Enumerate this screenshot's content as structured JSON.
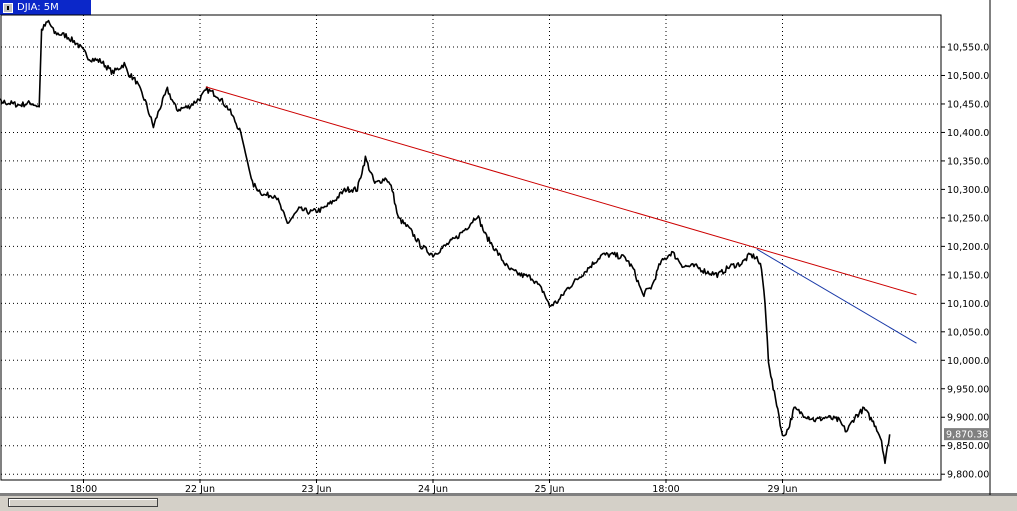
{
  "window": {
    "title": "DJIA: 5M"
  },
  "chart_data": {
    "type": "line",
    "symbol": "DJIA",
    "interval": "5M",
    "ylim": [
      9800,
      10600
    ],
    "y_ticks": [
      10550,
      10500,
      10450,
      10400,
      10350,
      10300,
      10250,
      10200,
      10150,
      10100,
      10050,
      10000,
      9950,
      9900,
      9850,
      9800
    ],
    "y_tick_labels": [
      "10,550.0",
      "10,500.0",
      "10,450.0",
      "10,400.0",
      "10,350.0",
      "10,300.0",
      "10,250.0",
      "10,200.0",
      "10,150.0",
      "10,100.0",
      "10,050.0",
      "10,000.0",
      "9,950.00",
      "9,900.00",
      "9,850.00",
      "9,800.00"
    ],
    "x_ticks": [
      1.0,
      2.0,
      3.0,
      4.0,
      5.0,
      6.0,
      7.0
    ],
    "x_tick_labels": [
      "18:00",
      "22 Jun",
      "23 Jun",
      "24 Jun",
      "25 Jun",
      "18:00",
      "29 Jun"
    ],
    "x_vertical_lines": [
      0.0,
      1.0,
      2.0,
      3.0,
      4.0,
      5.0,
      6.0,
      7.0
    ],
    "xlim": [
      0.0,
      7.92
    ],
    "grid": true,
    "last_value": 9870.38,
    "last_value_label": "9,870.38",
    "series": [
      {
        "color": "#000000",
        "points": [
          [
            0.0,
            10460
          ],
          [
            0.08,
            10440
          ],
          [
            0.15,
            10450
          ],
          [
            0.25,
            10455
          ],
          [
            0.35,
            10452
          ],
          [
            0.45,
            10448
          ],
          [
            0.55,
            10452
          ],
          [
            0.62,
            10445
          ],
          [
            0.64,
            10580
          ],
          [
            0.7,
            10595
          ],
          [
            0.75,
            10575
          ],
          [
            0.85,
            10570
          ],
          [
            0.95,
            10555
          ],
          [
            1.05,
            10530
          ],
          [
            1.15,
            10525
          ],
          [
            1.25,
            10505
          ],
          [
            1.35,
            10520
          ],
          [
            1.38,
            10505
          ],
          [
            1.45,
            10490
          ],
          [
            1.53,
            10455
          ],
          [
            1.6,
            10410
          ],
          [
            1.65,
            10440
          ],
          [
            1.72,
            10475
          ],
          [
            1.8,
            10440
          ],
          [
            1.9,
            10445
          ],
          [
            2.0,
            10460
          ],
          [
            2.06,
            10475
          ],
          [
            2.15,
            10465
          ],
          [
            2.25,
            10440
          ],
          [
            2.35,
            10400
          ],
          [
            2.45,
            10310
          ],
          [
            2.55,
            10290
          ],
          [
            2.65,
            10290
          ],
          [
            2.75,
            10240
          ],
          [
            2.85,
            10265
          ],
          [
            2.95,
            10260
          ],
          [
            3.05,
            10265
          ],
          [
            3.15,
            10280
          ],
          [
            3.25,
            10300
          ],
          [
            3.35,
            10300
          ],
          [
            3.42,
            10355
          ],
          [
            3.5,
            10310
          ],
          [
            3.6,
            10320
          ],
          [
            3.65,
            10300
          ],
          [
            3.7,
            10250
          ],
          [
            3.8,
            10230
          ],
          [
            3.9,
            10200
          ],
          [
            4.0,
            10185
          ],
          [
            4.1,
            10200
          ],
          [
            4.2,
            10215
          ],
          [
            4.3,
            10235
          ],
          [
            4.38,
            10255
          ],
          [
            4.45,
            10220
          ],
          [
            4.55,
            10190
          ],
          [
            4.65,
            10160
          ],
          [
            4.75,
            10150
          ],
          [
            4.85,
            10145
          ],
          [
            4.95,
            10120
          ],
          [
            5.0,
            10095
          ],
          [
            5.08,
            10105
          ],
          [
            5.15,
            10125
          ],
          [
            5.25,
            10145
          ],
          [
            5.35,
            10165
          ],
          [
            5.45,
            10185
          ],
          [
            5.55,
            10185
          ],
          [
            5.65,
            10180
          ],
          [
            5.72,
            10160
          ],
          [
            5.8,
            10115
          ],
          [
            5.88,
            10130
          ],
          [
            5.95,
            10170
          ],
          [
            6.05,
            10190
          ],
          [
            6.15,
            10165
          ],
          [
            6.25,
            10165
          ],
          [
            6.35,
            10155
          ],
          [
            6.45,
            10150
          ],
          [
            6.55,
            10165
          ],
          [
            6.65,
            10170
          ],
          [
            6.72,
            10185
          ],
          [
            6.78,
            10180
          ],
          [
            6.82,
            10160
          ],
          [
            6.85,
            10100
          ],
          [
            6.88,
            10000
          ],
          [
            6.92,
            9950
          ],
          [
            6.96,
            9915
          ],
          [
            7.0,
            9865
          ],
          [
            7.05,
            9880
          ],
          [
            7.1,
            9915
          ],
          [
            7.18,
            9905
          ],
          [
            7.28,
            9895
          ],
          [
            7.38,
            9900
          ],
          [
            7.48,
            9895
          ],
          [
            7.55,
            9875
          ],
          [
            7.62,
            9900
          ],
          [
            7.7,
            9915
          ],
          [
            7.75,
            9900
          ],
          [
            7.8,
            9885
          ],
          [
            7.85,
            9860
          ],
          [
            7.88,
            9820
          ],
          [
            7.92,
            9870
          ]
        ]
      }
    ],
    "trendlines": [
      {
        "color": "#cc0000",
        "from": [
          2.05,
          10480
        ],
        "to": [
          8.15,
          10115
        ]
      },
      {
        "color": "#1a3aa8",
        "from": [
          6.78,
          10195
        ],
        "to": [
          8.15,
          10030
        ]
      }
    ]
  }
}
